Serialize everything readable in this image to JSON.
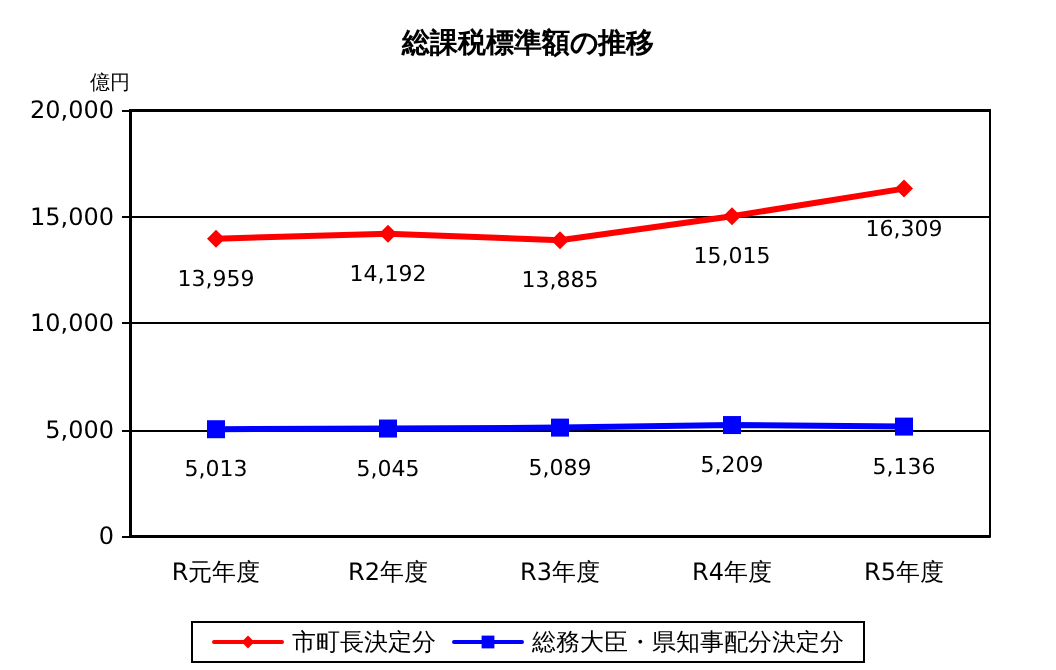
{
  "chart_data": {
    "type": "line",
    "title": "総課税標準額の推移",
    "ylabel": "億円",
    "categories": [
      "R元年度",
      "R2年度",
      "R3年度",
      "R4年度",
      "R5年度"
    ],
    "series": [
      {
        "name": "市町長決定分",
        "color": "#ff0000",
        "marker": "diamond",
        "values": [
          13959,
          14192,
          13885,
          15015,
          16309
        ],
        "value_labels": [
          "13,959",
          "14,192",
          "13,885",
          "15,015",
          "16,309"
        ]
      },
      {
        "name": "総務大臣・県知事配分決定分",
        "color": "#0000ff",
        "marker": "square",
        "values": [
          5013,
          5045,
          5089,
          5209,
          5136
        ],
        "value_labels": [
          "5,013",
          "5,045",
          "5,089",
          "5,209",
          "5,136"
        ]
      }
    ],
    "ylim": [
      0,
      20000
    ],
    "yticks": [
      0,
      {
        "value": 5000,
        "label": "5,000"
      },
      {
        "value": 10000,
        "label": "10,000"
      },
      {
        "value": 15000,
        "label": "15,000"
      },
      {
        "value": 20000,
        "label": "20,000"
      }
    ],
    "grid": "y",
    "legend": "bottom",
    "line_style": "solid"
  }
}
